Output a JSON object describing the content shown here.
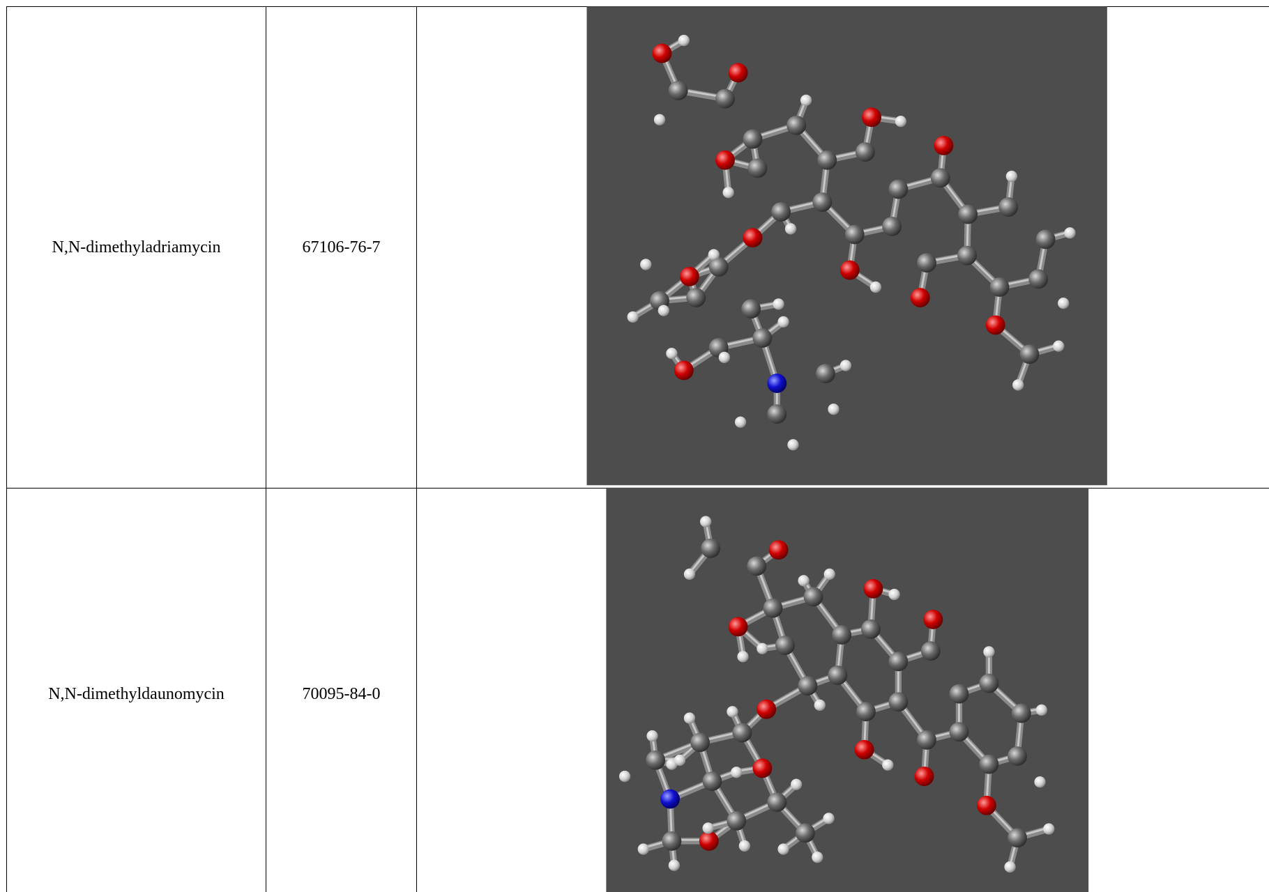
{
  "table": {
    "rows": [
      [
        "N,N-dimethyladriamycin",
        "67106-76-7"
      ],
      [
        "N,N-dimethyldaunomycin",
        "70095-84-0"
      ]
    ]
  }
}
